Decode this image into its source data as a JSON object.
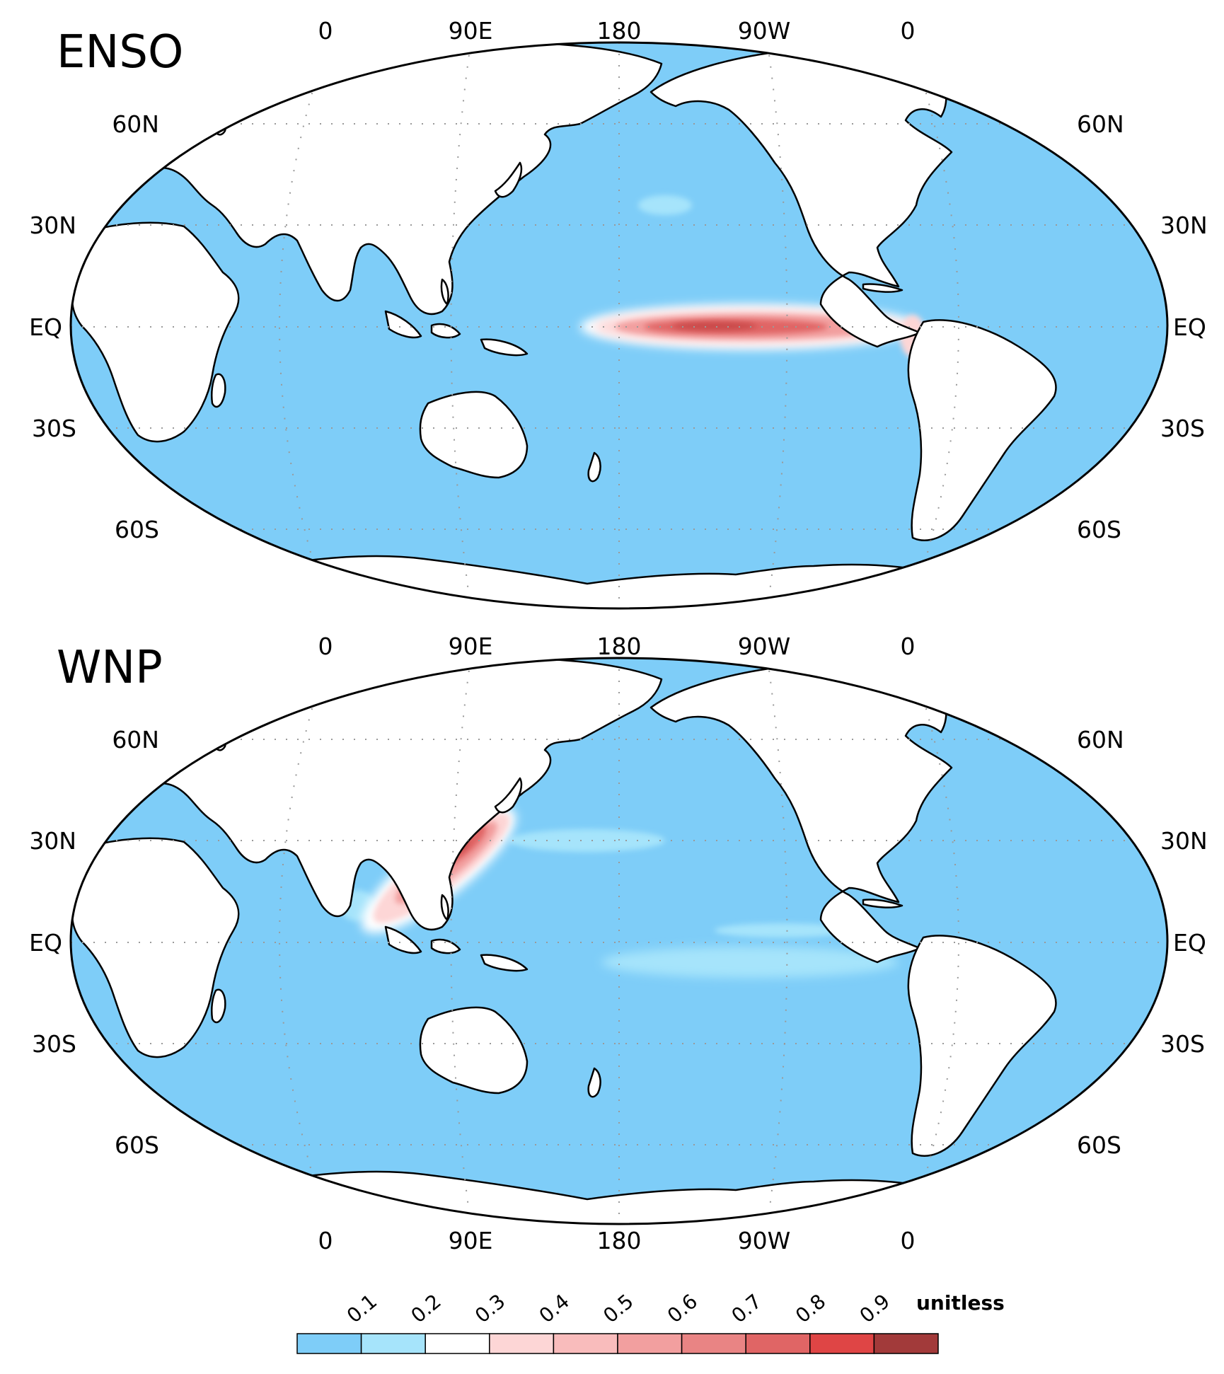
{
  "panels": [
    {
      "title": "ENSO",
      "lon_labels_top": [
        "0",
        "90E",
        "180",
        "90W",
        "0"
      ],
      "lon_labels_bottom": [],
      "lat_labels": [
        "60N",
        "30N",
        "EQ",
        "30S",
        "60S"
      ]
    },
    {
      "title": "WNP",
      "lon_labels_top": [
        "0",
        "90E",
        "180",
        "90W",
        "0"
      ],
      "lon_labels_bottom": [
        "0",
        "90E",
        "180",
        "90W",
        "0"
      ],
      "lat_labels": [
        "60N",
        "30N",
        "EQ",
        "30S",
        "60S"
      ]
    }
  ],
  "colorbar": {
    "levels": [
      "0.1",
      "0.2",
      "0.3",
      "0.4",
      "0.5",
      "0.6",
      "0.7",
      "0.8",
      "0.9"
    ],
    "unit": "unitless",
    "colors": [
      "#7ecdf8",
      "#a6e4fb",
      "#ffffff",
      "#fdd6d6",
      "#f9bcbc",
      "#f29f9f",
      "#e98484",
      "#e06565",
      "#df4545",
      "#a23a3a"
    ]
  },
  "colors": {
    "ocean": "#7ecdf8",
    "land": "#ffffff",
    "coastline": "#000000"
  }
}
